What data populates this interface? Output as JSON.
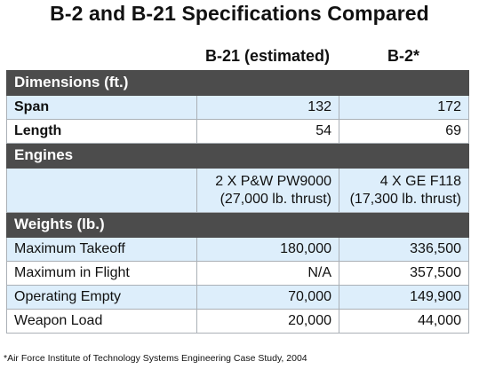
{
  "title": "B-2 and B-21 Specifications Compared",
  "columns": {
    "b21": "B-21 (estimated)",
    "b2": "B-2*"
  },
  "sections": {
    "dimensions": "Dimensions (ft.)",
    "engines": "Engines",
    "weights": "Weights (lb.)"
  },
  "dimensions": [
    {
      "label": "Span",
      "b21": "132",
      "b2": "172"
    },
    {
      "label": "Length",
      "b21": "54",
      "b2": "69"
    }
  ],
  "engines": {
    "b21_line1": "2 X P&W PW9000",
    "b21_line2": "(27,000 lb. thrust)",
    "b2_line1": "4 X GE F118",
    "b2_line2": "(17,300 lb. thrust)"
  },
  "weights": [
    {
      "label": "Maximum Takeoff",
      "b21": "180,000",
      "b2": "336,500"
    },
    {
      "label": "Maximum in Flight",
      "b21": "N/A",
      "b2": "357,500"
    },
    {
      "label": "Operating Empty",
      "b21": "70,000",
      "b2": "149,900"
    },
    {
      "label": "Weapon Load",
      "b21": "20,000",
      "b2": "44,000"
    }
  ],
  "footnote": "*Air Force Institute of Technology Systems Engineering Case Study, 2004",
  "colors": {
    "section_header": "#4c4c4c",
    "row_blue": "#ddeefb",
    "row_white": "#ffffff",
    "border": "#aab0b6"
  }
}
